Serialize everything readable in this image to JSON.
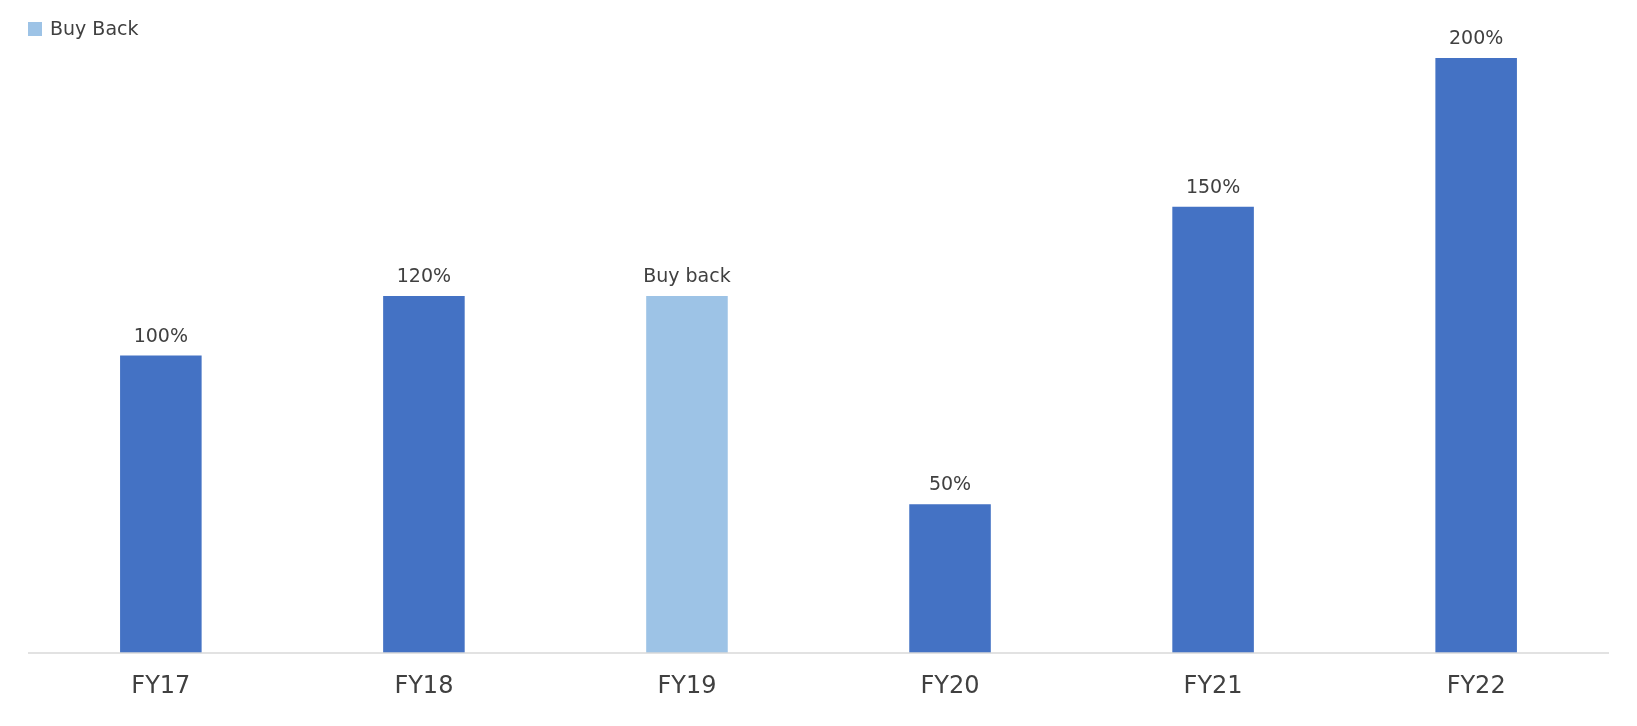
{
  "chart_data": {
    "type": "bar",
    "categories": [
      "FY17",
      "FY18",
      "FY19",
      "FY20",
      "FY21",
      "FY22"
    ],
    "stacked": true,
    "series": [
      {
        "color": "#4472c4",
        "values": [
          100,
          120,
          null,
          50,
          150,
          200
        ],
        "value_labels": [
          "100%",
          "120%",
          null,
          "50%",
          "150%",
          "200%"
        ]
      },
      {
        "name": "Buy Back",
        "color": "#9dc3e6",
        "values": [
          null,
          null,
          120,
          null,
          null,
          null
        ],
        "value_labels": [
          null,
          null,
          "Buy back",
          null,
          null,
          null
        ]
      }
    ],
    "ylim": [
      0,
      200
    ],
    "tick_labels": "x",
    "legend": "top left"
  }
}
